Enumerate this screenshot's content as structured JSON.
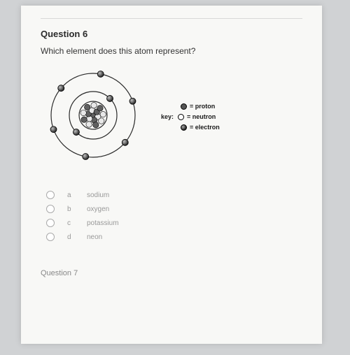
{
  "question": {
    "number_label": "Question 6",
    "prompt": "Which element does this atom represent?",
    "next_label": "Question 7"
  },
  "key": {
    "prefix": "key:",
    "proton": "= proton",
    "neutron": "= neutron",
    "electron": "= electron"
  },
  "choices": [
    {
      "letter": "a",
      "text": "sodium"
    },
    {
      "letter": "b",
      "text": "oxygen"
    },
    {
      "letter": "c",
      "text": "potassium"
    },
    {
      "letter": "d",
      "text": "neon"
    }
  ],
  "atom": {
    "type": "bohr-diagram",
    "size": 150,
    "stroke_color": "#2a2a2a",
    "stroke_width": 1.2,
    "nucleus_radius": 20,
    "nucleus_protons": 8,
    "nucleus_neutrons": 8,
    "proton_fill": "#606060",
    "neutron_fill": "#e8e8e8",
    "electron_fill_a": "#bfbfbf",
    "electron_fill_b": "#1a1a1a",
    "nucleon_r": 4.2,
    "shells": [
      {
        "radius": 34,
        "electrons": 2
      },
      {
        "radius": 60,
        "electrons": 6
      }
    ],
    "electron_r": 4.5
  }
}
